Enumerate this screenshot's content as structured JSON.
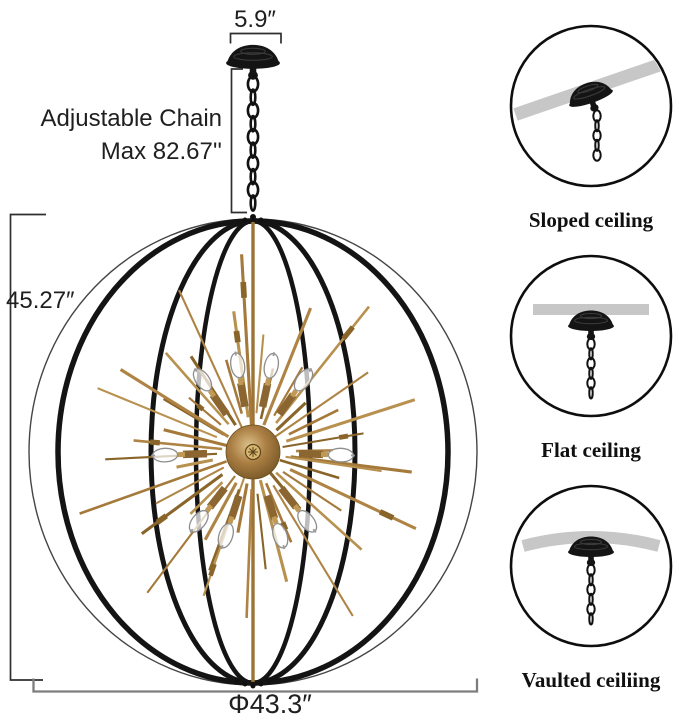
{
  "colors": {
    "gold": "#a5793a",
    "gold_dark": "#8a6529",
    "gold_light": "#b8914f",
    "black": "#141414",
    "ceiling_gray": "#c7c7c7",
    "dim_line": "#2f2f2f"
  },
  "dimensions": {
    "canopy_width": "5.9″",
    "chain_label_line1": "Adjustable Chain",
    "chain_label_line2": "Max 82.67''",
    "fixture_height": "45.27″",
    "fixture_diameter": "Φ43.3″"
  },
  "mount_options": [
    {
      "label": "Sloped ceiling",
      "icon": "sloped-ceiling-icon"
    },
    {
      "label": "Flat ceiling",
      "icon": "flat-ceiling-icon"
    },
    {
      "label": "Vaulted ceiliing",
      "icon": "vaulted-ceiling-icon"
    }
  ]
}
